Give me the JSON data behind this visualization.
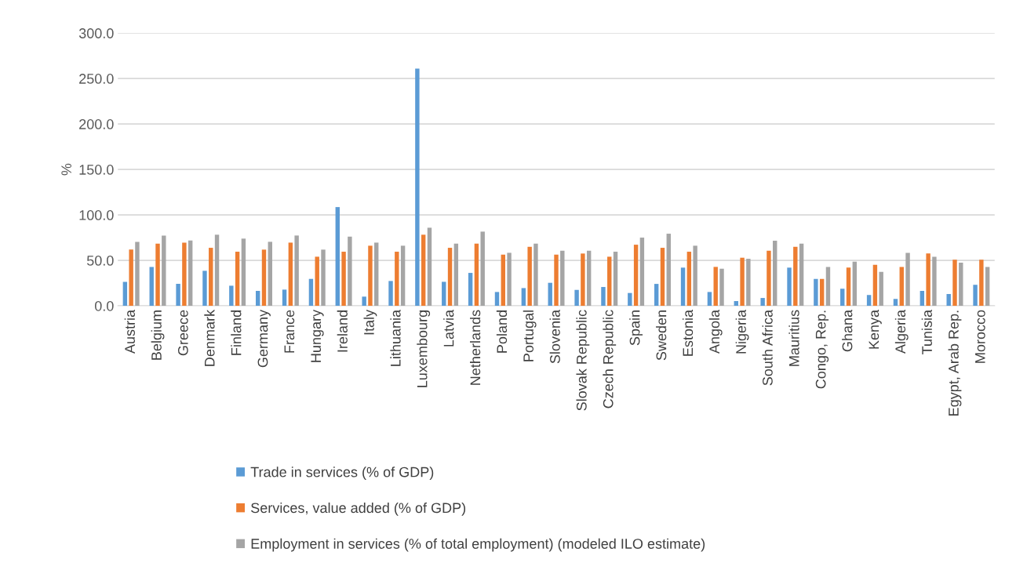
{
  "chart_data": {
    "type": "bar",
    "ylabel": "%",
    "categories": [
      "Austria",
      "Belgium",
      "Greece",
      "Denmark",
      "Finland",
      "Germany",
      "France",
      "Hungary",
      "Ireland",
      "Italy",
      "Lithuania",
      "Luxembourg",
      "Latvia",
      "Netherlands",
      "Poland",
      "Portugal",
      "Slovenia",
      "Slovak Republic",
      "Czech Republic",
      "Spain",
      "Sweden",
      "Estonia",
      "Angola",
      "Nigeria",
      "South Africa",
      "Mauritius",
      "Congo, Rep.",
      "Ghana",
      "Kenya",
      "Algeria",
      "Tunisia",
      "Egypt, Arab Rep.",
      "Morocco"
    ],
    "series": [
      {
        "name": "Trade in services (% of GDP)",
        "color": "#5b9bd5",
        "values": [
          26.4,
          42.8,
          24.1,
          38.5,
          22.1,
          16.4,
          17.8,
          29.6,
          108.6,
          10.1,
          27.3,
          261,
          26.4,
          36.2,
          15.2,
          19.5,
          25.3,
          17.5,
          20.7,
          14.1,
          24.1,
          42,
          15.2,
          5.2,
          8.6,
          42,
          29.6,
          18.7,
          11.8,
          7.5,
          16.4,
          12.9,
          23
        ]
      },
      {
        "name": "Services, value added (% of GDP)",
        "color": "#ed7d31",
        "values": [
          61.8,
          68.4,
          69.5,
          63.8,
          59.5,
          61.8,
          69.5,
          54,
          59.5,
          66.1,
          59.5,
          78.2,
          63.8,
          68.4,
          56.3,
          64.9,
          56.3,
          57.5,
          54,
          67.2,
          63.8,
          59.5,
          42.8,
          52.9,
          60.6,
          64.9,
          29.6,
          42,
          45.1,
          42.8,
          57.5,
          50.6,
          50.6
        ]
      },
      {
        "name": "Employment in services (% of total employment) (modeled ILO estimate)",
        "color": "#a5a5a5",
        "values": [
          70.4,
          77.3,
          71.8,
          78.2,
          73.9,
          70.4,
          77.3,
          61.8,
          76.1,
          69.5,
          66.1,
          85.9,
          68.4,
          81.6,
          58.3,
          68.4,
          60.6,
          60.6,
          59.5,
          75,
          79.3,
          66.1,
          40.8,
          51.7,
          71.6,
          68.4,
          42.8,
          48.6,
          37.4,
          58.3,
          54,
          47.4,
          42.8
        ]
      }
    ],
    "ylim": [
      0,
      300
    ],
    "yticks": [
      {
        "value": 0,
        "label": "0.0"
      },
      {
        "value": 50,
        "label": "50.0"
      },
      {
        "value": 100,
        "label": "100.0"
      },
      {
        "value": 150,
        "label": "150.0"
      },
      {
        "value": 200,
        "label": "200.0"
      },
      {
        "value": 250,
        "label": "250.0"
      },
      {
        "value": 300,
        "label": "300.0"
      }
    ],
    "grid": "y",
    "legend": "bottom"
  }
}
